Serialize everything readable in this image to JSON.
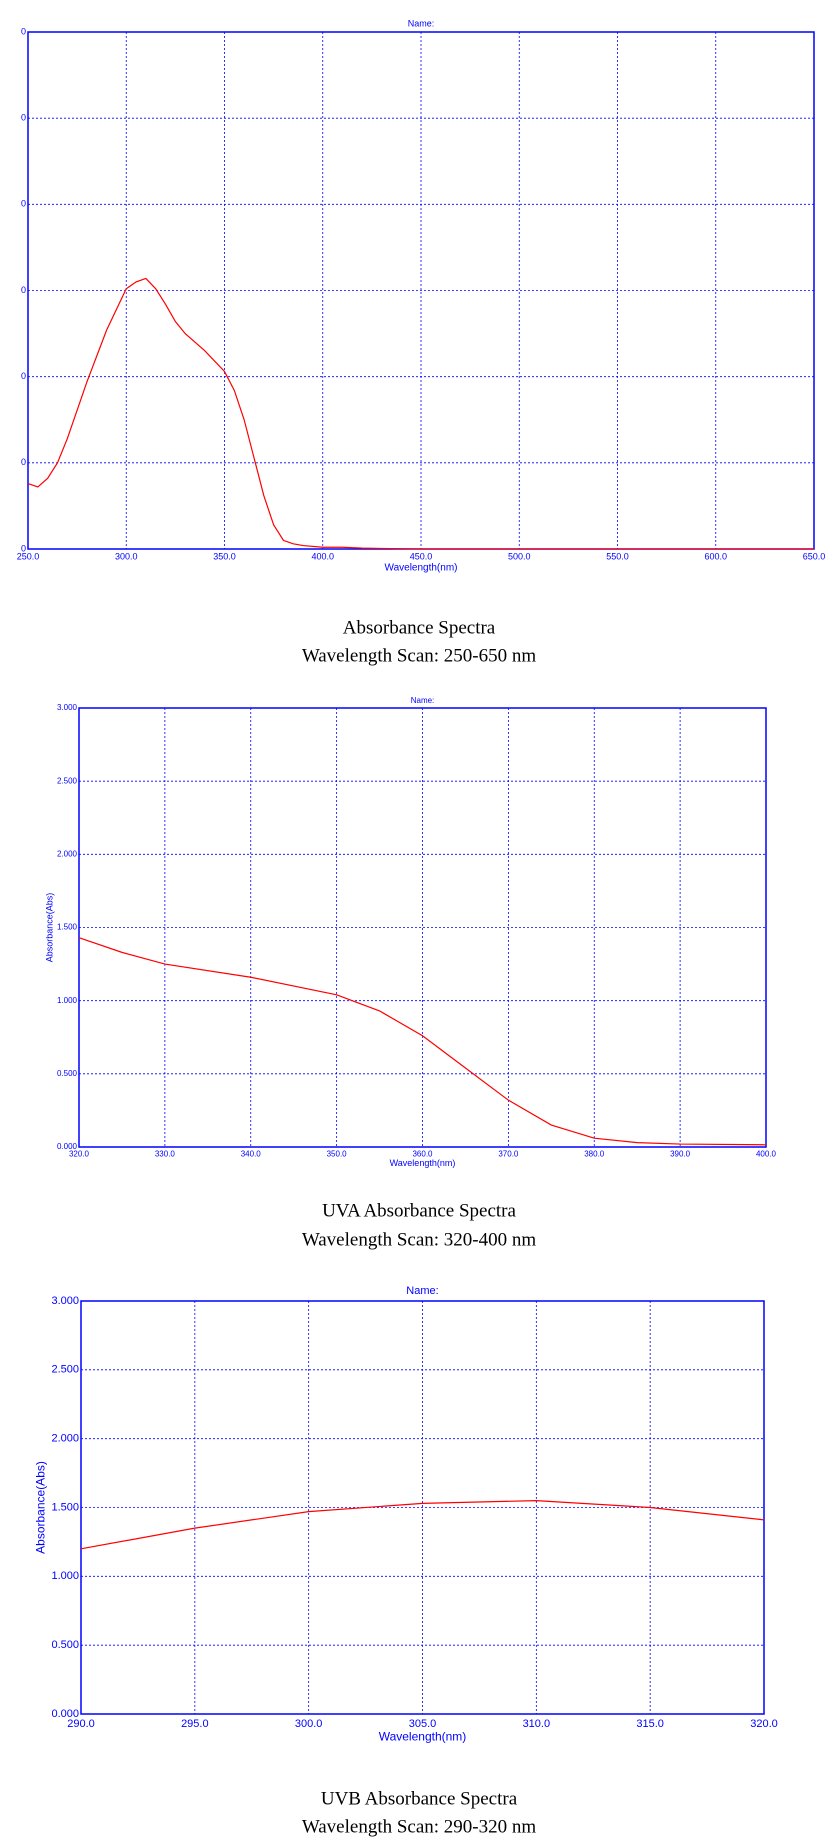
{
  "chart_data": [
    {
      "type": "line",
      "title": "Name:",
      "xlabel": "Wavelength(nm)",
      "caption": [
        "Absorbance Spectra",
        "Wavelength Scan: 250-650 nm"
      ],
      "x": [
        250,
        255,
        260,
        265,
        270,
        280,
        290,
        300,
        305,
        310,
        315,
        320,
        325,
        330,
        340,
        350,
        355,
        360,
        365,
        370,
        375,
        380,
        385,
        390,
        400,
        410,
        420,
        450,
        500,
        550,
        600,
        650
      ],
      "series": [
        {
          "color": "#ff0000",
          "values": [
            0.38,
            0.36,
            0.41,
            0.5,
            0.64,
            0.97,
            1.27,
            1.51,
            1.55,
            1.57,
            1.51,
            1.42,
            1.32,
            1.25,
            1.15,
            1.03,
            0.92,
            0.75,
            0.53,
            0.31,
            0.14,
            0.05,
            0.03,
            0.02,
            0.01,
            0.01,
            0.005,
            0,
            0,
            0,
            0,
            0
          ]
        }
      ],
      "xlim": [
        250,
        650
      ],
      "xticks": [
        {
          "value": 250,
          "label": "250.0"
        },
        {
          "value": 300,
          "label": "300.0"
        },
        {
          "value": 350,
          "label": "350.0"
        },
        {
          "value": 400,
          "label": "400.0"
        },
        {
          "value": 450,
          "label": "450.0"
        },
        {
          "value": 500,
          "label": "500.0"
        },
        {
          "value": 550,
          "label": "550.0"
        },
        {
          "value": 600,
          "label": "600.0"
        },
        {
          "value": 650,
          "label": "650.0"
        }
      ],
      "ylim": [
        0,
        3
      ],
      "yticks": [
        0,
        {
          "value": 0.5,
          "label": "0"
        },
        {
          "value": 1,
          "label": "0"
        },
        {
          "value": 1.5,
          "label": "0"
        },
        {
          "value": 2,
          "label": "0"
        },
        {
          "value": 2.5,
          "label": "0"
        },
        {
          "value": 3,
          "label": "0"
        }
      ],
      "grid": true
    },
    {
      "type": "line",
      "title": "Name:",
      "xlabel": "Wavelength(nm)",
      "ylabel": "Absorbance(Abs)",
      "caption": [
        "UVA Absorbance Spectra",
        "Wavelength Scan: 320-400 nm"
      ],
      "x": [
        320,
        325,
        330,
        340,
        350,
        355,
        360,
        365,
        370,
        375,
        380,
        385,
        390,
        400
      ],
      "series": [
        {
          "color": "#ff0000",
          "values": [
            1.43,
            1.33,
            1.25,
            1.16,
            1.04,
            0.93,
            0.76,
            0.54,
            0.32,
            0.15,
            0.06,
            0.03,
            0.02,
            0.015
          ]
        }
      ],
      "xlim": [
        320,
        400
      ],
      "xticks": [
        {
          "value": 320,
          "label": "320.0"
        },
        {
          "value": 330,
          "label": "330.0"
        },
        {
          "value": 340,
          "label": "340.0"
        },
        {
          "value": 350,
          "label": "350.0"
        },
        {
          "value": 360,
          "label": "360.0"
        },
        {
          "value": 370,
          "label": "370.0"
        },
        {
          "value": 380,
          "label": "380.0"
        },
        {
          "value": 390,
          "label": "390.0"
        },
        {
          "value": 400,
          "label": "400.0"
        }
      ],
      "ylim": [
        0,
        3
      ],
      "yticks": [
        {
          "value": 0,
          "label": "0.000"
        },
        {
          "value": 0.5,
          "label": "0.500"
        },
        {
          "value": 1,
          "label": "1.000"
        },
        {
          "value": 1.5,
          "label": "1.500"
        },
        {
          "value": 2,
          "label": "2.000"
        },
        {
          "value": 2.5,
          "label": "2.500"
        },
        {
          "value": 3,
          "label": "3.000"
        }
      ],
      "grid": true
    },
    {
      "type": "line",
      "title": "Name:",
      "xlabel": "Wavelength(nm)",
      "ylabel": "Absorbance(Abs)",
      "caption": [
        "UVB Absorbance Spectra",
        "Wavelength Scan: 290-320 nm"
      ],
      "x": [
        290,
        295,
        300,
        305,
        310,
        315,
        320
      ],
      "series": [
        {
          "color": "#ff0000",
          "values": [
            1.2,
            1.35,
            1.47,
            1.53,
            1.55,
            1.5,
            1.41
          ]
        }
      ],
      "xlim": [
        290,
        320
      ],
      "xticks": [
        {
          "value": 290,
          "label": "290.0"
        },
        {
          "value": 295,
          "label": "295.0"
        },
        {
          "value": 300,
          "label": "300.0"
        },
        {
          "value": 305,
          "label": "305.0"
        },
        {
          "value": 310,
          "label": "310.0"
        },
        {
          "value": 315,
          "label": "315.0"
        },
        {
          "value": 320,
          "label": "320.0"
        }
      ],
      "ylim": [
        0,
        3
      ],
      "yticks": [
        {
          "value": 0,
          "label": "0.000"
        },
        {
          "value": 0.5,
          "label": "0.500"
        },
        {
          "value": 1,
          "label": "1.000"
        },
        {
          "value": 1.5,
          "label": "1.500"
        },
        {
          "value": 2,
          "label": "2.000"
        },
        {
          "value": 2.5,
          "label": "2.500"
        },
        {
          "value": 3,
          "label": "3.000"
        }
      ],
      "grid": true
    }
  ]
}
